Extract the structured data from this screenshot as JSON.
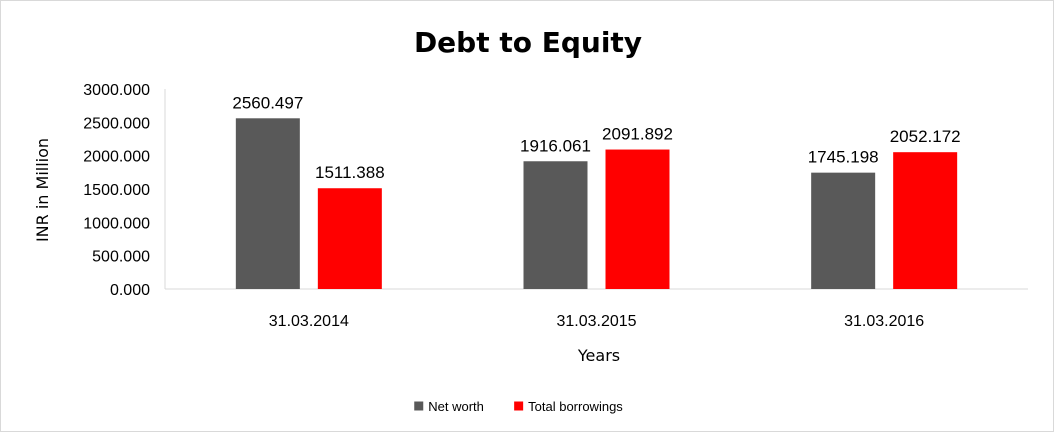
{
  "chart_data": {
    "type": "bar",
    "title": "Debt to Equity",
    "xlabel": "Years",
    "ylabel": "INR in Million",
    "categories": [
      "31.03.2014",
      "31.03.2015",
      "31.03.2016"
    ],
    "series": [
      {
        "name": "Net worth",
        "color": "#595959",
        "values": [
          2560.497,
          1916.061,
          1745.198
        ],
        "labels": [
          "2560.497",
          "1916.061",
          "1745.198"
        ]
      },
      {
        "name": "Total borrowings",
        "color": "#ff0000",
        "values": [
          1511.388,
          2091.892,
          2052.172
        ],
        "labels": [
          "1511.388",
          "2091.892",
          "2052.172"
        ]
      }
    ],
    "ylim": [
      0,
      3000
    ],
    "yticks": [
      0,
      500,
      1000,
      1500,
      2000,
      2500,
      3000
    ],
    "ytick_labels": [
      "0.000",
      "500.000",
      "1000.000",
      "1500.000",
      "2000.000",
      "2500.000",
      "3000.000"
    ],
    "grid": false,
    "legend_position": "bottom"
  }
}
